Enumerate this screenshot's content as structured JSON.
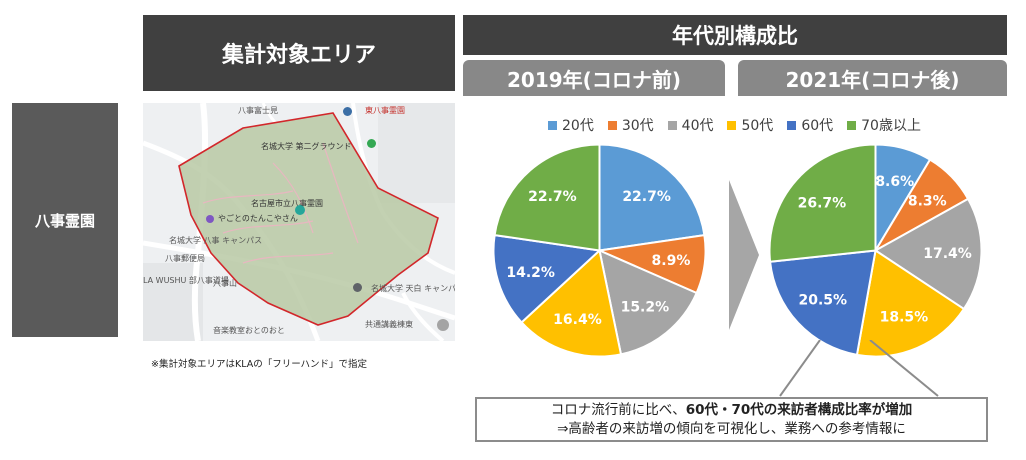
{
  "side_label": "八事霊園",
  "area_header": "集計対象エリア",
  "distribution_header": "年代別構成比",
  "map": {
    "labels": {
      "top_area": "八事富士見",
      "ground": "名城大学 第二グラウンド",
      "cemetery": "名古屋市立八事霊園",
      "shop": "やごとのたんこやさん",
      "campus_left": "名城大学 八事 キャンパス",
      "post_office": "八事郵便局",
      "wushu": "LA WUSHU 部八事道場",
      "yagotoyama": "八事山",
      "campus_right": "名城大学 天白 キャンパス",
      "music_school": "音楽教室おとのおと",
      "station": "共通講義棟東",
      "east": "東八事霊園"
    }
  },
  "footnote": "※集計対象エリアはKLAの「フリーハンド」で指定",
  "conclusion": {
    "line1_prefix": "コロナ流行前に比べ、",
    "line1_bold": "60代・70代の来訪者構成比率が増加",
    "line2": "⇒高齢者の来訪増の傾向を可視化し、業務への参考情報に"
  },
  "chart_data": [
    {
      "type": "pie",
      "title": "2019年(コロナ前)",
      "categories": [
        "20代",
        "30代",
        "40代",
        "50代",
        "60代",
        "70歳以上"
      ],
      "values": [
        22.7,
        8.9,
        15.2,
        16.4,
        14.2,
        22.7
      ],
      "labels": [
        "22.7%",
        "8.9%",
        "15.2%",
        "16.4%",
        "14.2%",
        "22.7%"
      ],
      "colors": [
        "#5b9bd5",
        "#ed7d31",
        "#a5a5a5",
        "#ffc000",
        "#4472c4",
        "#70ad47"
      ],
      "legend": "top"
    },
    {
      "type": "pie",
      "title": "2021年(コロナ後)",
      "categories": [
        "20代",
        "30代",
        "40代",
        "50代",
        "60代",
        "70歳以上"
      ],
      "values": [
        8.6,
        8.3,
        17.4,
        18.5,
        20.5,
        26.7
      ],
      "labels": [
        "8.6%",
        "8.3%",
        "17.4%",
        "18.5%",
        "20.5%",
        "26.7%"
      ],
      "colors": [
        "#5b9bd5",
        "#ed7d31",
        "#a5a5a5",
        "#ffc000",
        "#4472c4",
        "#70ad47"
      ],
      "legend": "top"
    }
  ]
}
